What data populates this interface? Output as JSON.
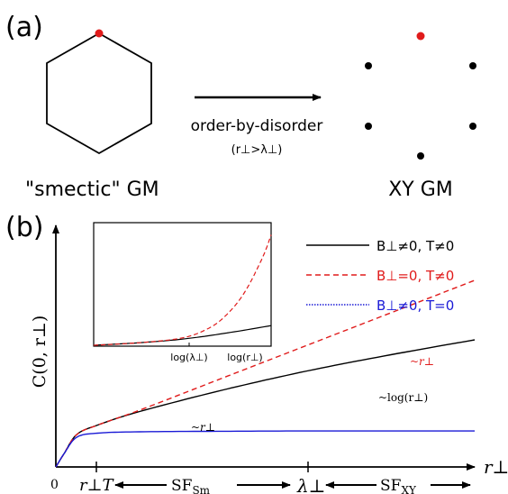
{
  "panel_a": {
    "label": "(a)",
    "left_caption": "\"smectic\" GM",
    "right_caption": "XY GM",
    "arrow_label": "order-by-disorder",
    "arrow_condition": "(r⊥>λ⊥)",
    "colors": {
      "highlight": "#e01b1b",
      "dot": "#000000"
    }
  },
  "panel_b": {
    "label": "(b)",
    "ylabel": "C(0, r⊥)",
    "xlabel": "r⊥",
    "origin_label": "0",
    "x_markers": [
      {
        "id": "rT",
        "label": "r⊥T",
        "x": 0.12
      },
      {
        "id": "lambda",
        "label": "λ⊥",
        "x": 0.62
      }
    ],
    "regions": [
      "SF_Sm",
      "SF_XY"
    ],
    "region_labels": {
      "sm_main": "SF",
      "sm_sub": "Sm",
      "xy_main": "SF",
      "xy_sub": "XY"
    },
    "annotations": {
      "red_curve": "~r⊥",
      "black_far": "~log(r⊥)",
      "black_near": "~r⊥"
    },
    "legend": [
      {
        "label": "B⊥≠0, T≠0",
        "color": "#000000",
        "style": "solid"
      },
      {
        "label": "B⊥=0, T≠0",
        "color": "#e01b1b",
        "style": "dashed"
      },
      {
        "label": "B⊥≠0, T=0",
        "color": "#1a1ad6",
        "style": "dotted"
      }
    ],
    "inset": {
      "tick_labels": [
        "log(λ⊥)",
        "log(r⊥)"
      ]
    }
  },
  "chart_data": {
    "type": "line",
    "xlabel": "r⊥",
    "ylabel": "C(0, r⊥)",
    "xlim": [
      0,
      1
    ],
    "ylim": [
      0,
      1
    ],
    "series": [
      {
        "name": "B⊥≠0, T≠0",
        "color": "#000000",
        "x": [
          0,
          0.02,
          0.05,
          0.1,
          0.2,
          0.4,
          0.6,
          0.8,
          1.0
        ],
        "y": [
          0,
          0.05,
          0.12,
          0.155,
          0.205,
          0.285,
          0.355,
          0.415,
          0.47
        ]
      },
      {
        "name": "B⊥=0, T≠0",
        "color": "#e01b1b",
        "x": [
          0,
          0.02,
          0.05,
          0.1,
          0.2,
          0.4,
          0.6,
          0.8,
          1.0
        ],
        "y": [
          0,
          0.05,
          0.12,
          0.155,
          0.21,
          0.33,
          0.45,
          0.57,
          0.69
        ]
      },
      {
        "name": "B⊥≠0, T=0",
        "color": "#1a1ad6",
        "x": [
          0,
          0.02,
          0.05,
          0.1,
          0.2,
          0.4,
          0.6,
          0.8,
          1.0
        ],
        "y": [
          0,
          0.05,
          0.11,
          0.125,
          0.13,
          0.132,
          0.133,
          0.133,
          0.133
        ]
      }
    ],
    "inset_series": [
      {
        "name": "B⊥≠0, T≠0",
        "color": "#000000",
        "x": [
          0,
          0.25,
          0.5,
          0.75,
          1.0
        ],
        "y": [
          0.0,
          0.02,
          0.05,
          0.1,
          0.16
        ]
      },
      {
        "name": "B⊥=0, T≠0",
        "color": "#e01b1b",
        "x": [
          0,
          0.25,
          0.5,
          0.65,
          0.75,
          0.85,
          0.95,
          1.0
        ],
        "y": [
          0.0,
          0.02,
          0.06,
          0.14,
          0.25,
          0.43,
          0.71,
          0.9
        ]
      }
    ]
  }
}
